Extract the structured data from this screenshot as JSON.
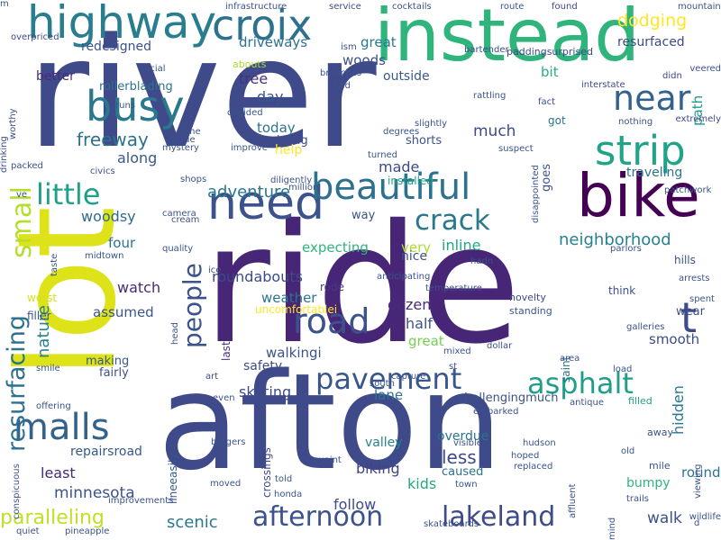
{
  "words": [
    {
      "t": "river",
      "c": "#3e4a89"
    },
    {
      "t": "ride",
      "c": "#482677"
    },
    {
      "t": "afton",
      "c": "#3e4a89"
    },
    {
      "t": "lot",
      "c": "#dde318"
    },
    {
      "t": "instead",
      "c": "#2fb47c"
    },
    {
      "t": "highway",
      "c": "#287d8e"
    },
    {
      "t": "croix",
      "c": "#2c728e"
    },
    {
      "t": "busy",
      "c": "#2a788e"
    },
    {
      "t": "need",
      "c": "#3b528b"
    },
    {
      "t": "bike",
      "c": "#440154"
    },
    {
      "t": "beautiful",
      "c": "#2c728e"
    },
    {
      "t": "strip",
      "c": "#20a386"
    },
    {
      "t": "near",
      "c": "#33638d"
    },
    {
      "t": "little",
      "c": "#1fa187"
    },
    {
      "t": "small",
      "c": "#b5de2b"
    },
    {
      "t": "malls",
      "c": "#33638d"
    },
    {
      "t": "road",
      "c": "#3b528b"
    },
    {
      "t": "people",
      "c": "#3b528b"
    },
    {
      "t": "resurfacing",
      "c": "#2c728e"
    },
    {
      "t": "pavement",
      "c": "#39568c"
    },
    {
      "t": "asphalt",
      "c": "#1f9e89"
    },
    {
      "t": "crack",
      "c": "#2a788e"
    },
    {
      "t": "afternoon",
      "c": "#3b528b"
    },
    {
      "t": "lakeland",
      "c": "#3e4a89"
    },
    {
      "t": "t",
      "c": "#3e4a89"
    },
    {
      "t": "paralleling",
      "c": "#c0df25"
    },
    {
      "t": "dodging",
      "c": "#fde725"
    },
    {
      "t": "freeway",
      "c": "#2c728e"
    },
    {
      "t": "adventure",
      "c": "#2a788e"
    },
    {
      "t": "neighborhood",
      "c": "#26828e"
    },
    {
      "t": "woodsy",
      "c": "#31688e"
    },
    {
      "t": "roundabouts",
      "c": "#3e4a89"
    },
    {
      "t": "expecting",
      "c": "#2fb47c"
    },
    {
      "t": "very",
      "c": "#addc30"
    },
    {
      "t": "inline",
      "c": "#22a884"
    },
    {
      "t": "nature",
      "c": "#26828e"
    },
    {
      "t": "weather",
      "c": "#2c728e"
    },
    {
      "t": "skating",
      "c": "#3e4a89"
    },
    {
      "t": "lane",
      "c": "#2c728e"
    },
    {
      "t": "scenic",
      "c": "#2a788e"
    },
    {
      "t": "minnesota",
      "c": "#3b528b"
    },
    {
      "t": "repairsroad",
      "c": "#38588c"
    },
    {
      "t": "least",
      "c": "#482878"
    },
    {
      "t": "valley",
      "c": "#25848e"
    },
    {
      "t": "biking",
      "c": "#414487"
    },
    {
      "t": "kids",
      "c": "#22a884"
    },
    {
      "t": "follow",
      "c": "#3e4a89"
    },
    {
      "t": "walk",
      "c": "#3b528b"
    },
    {
      "t": "less",
      "c": "#3e4a89"
    },
    {
      "t": "caused",
      "c": "#2c728e"
    },
    {
      "t": "hidden",
      "c": "#2a788e"
    },
    {
      "t": "round",
      "c": "#2c728e"
    },
    {
      "t": "bumpy",
      "c": "#2fb47c"
    },
    {
      "t": "driveways",
      "c": "#2c728e"
    },
    {
      "t": "great",
      "c": "#2a788e"
    },
    {
      "t": "redesigned",
      "c": "#3b528b"
    },
    {
      "t": "better",
      "c": "#472c7a"
    },
    {
      "t": "tree",
      "c": "#46337f"
    },
    {
      "t": "woods",
      "c": "#3b528b"
    },
    {
      "t": "day",
      "c": "#39568c"
    },
    {
      "t": "today",
      "c": "#2c728e"
    },
    {
      "t": "outside",
      "c": "#38588c"
    },
    {
      "t": "resurfaced",
      "c": "#3e4a89"
    },
    {
      "t": "path",
      "c": "#1f9a8a"
    },
    {
      "t": "bit",
      "c": "#29af7f"
    },
    {
      "t": "rollerblading",
      "c": "#2c728e"
    },
    {
      "t": "much",
      "c": "#3e4a89"
    },
    {
      "t": "got",
      "c": "#2c728e"
    },
    {
      "t": "help",
      "c": "#fde725"
    },
    {
      "t": "shorts",
      "c": "#3b528b"
    },
    {
      "t": "along",
      "c": "#38588c"
    },
    {
      "t": "made",
      "c": "#3e4a89"
    },
    {
      "t": "goes",
      "c": "#3b528b"
    },
    {
      "t": "traveling",
      "c": "#2c728e"
    },
    {
      "t": "zigzag",
      "c": "#3e4a89"
    },
    {
      "t": "installed",
      "c": "#20a386"
    },
    {
      "t": "four",
      "c": "#2c728e"
    },
    {
      "t": "way",
      "c": "#3b528b"
    },
    {
      "t": "watch",
      "c": "#472c7a"
    },
    {
      "t": "assumed",
      "c": "#39568c"
    },
    {
      "t": "rode",
      "c": "#453882"
    },
    {
      "t": "last",
      "c": "#46337f"
    },
    {
      "t": "dozen",
      "c": "#472c7a"
    },
    {
      "t": "half",
      "c": "#3b528b"
    },
    {
      "t": "nice",
      "c": "#3b528b"
    },
    {
      "t": "great",
      "c": "#75d054"
    },
    {
      "t": "saint",
      "c": "#2c728e"
    },
    {
      "t": "walkingi",
      "c": "#3b528b"
    },
    {
      "t": "safety",
      "c": "#3e4a89"
    },
    {
      "t": "smooth",
      "c": "#3e4a89"
    },
    {
      "t": "wear",
      "c": "#3b528b"
    },
    {
      "t": "think",
      "c": "#3b528b"
    },
    {
      "t": "crossings",
      "c": "#3e4a89"
    },
    {
      "t": "overdue",
      "c": "#2c728e"
    },
    {
      "t": "challengingmuch",
      "c": "#3b528b"
    },
    {
      "t": "fairly",
      "c": "#3b528b"
    },
    {
      "t": "making",
      "c": "#38588c"
    },
    {
      "t": "filler",
      "c": "#39568c"
    },
    {
      "t": "worst",
      "c": "#d2e21b"
    },
    {
      "t": "lineeasily",
      "c": "#38588c"
    },
    {
      "t": "uncomfortablei",
      "c": "#fde725"
    },
    {
      "t": "hills",
      "c": "#3b528b"
    },
    {
      "t": "filled",
      "c": "#1fa187"
    },
    {
      "t": "standing",
      "c": "#38588c"
    },
    {
      "t": "novelty",
      "c": "#3e4a89"
    },
    {
      "t": "away",
      "c": "#3b528b"
    },
    {
      "t": "mile",
      "c": "#3b528b"
    },
    {
      "t": "infrastructure",
      "c": "#3b528b"
    },
    {
      "t": "service",
      "c": "#3e4a89"
    },
    {
      "t": "cocktails",
      "c": "#3b528b"
    },
    {
      "t": "route",
      "c": "#3b528b"
    },
    {
      "t": "found",
      "c": "#3e4a89"
    },
    {
      "t": "mountain",
      "c": "#3b528b"
    },
    {
      "t": "overpriced",
      "c": "#3e4a89"
    },
    {
      "t": "worthy",
      "c": "#3b528b"
    },
    {
      "t": "abouts",
      "c": "#addc30"
    },
    {
      "t": "branches",
      "c": "#3b528b"
    },
    {
      "t": "paddingsurprised",
      "c": "#3e4a89"
    },
    {
      "t": "social",
      "c": "#3b528b"
    },
    {
      "t": "ism",
      "c": "#3b528b"
    },
    {
      "t": "bartender",
      "c": "#3e4a89"
    },
    {
      "t": "interstate",
      "c": "#3e4a89"
    },
    {
      "t": "didn",
      "c": "#3e4a89"
    },
    {
      "t": "veered",
      "c": "#3b528b"
    },
    {
      "t": "find",
      "c": "#3b528b"
    },
    {
      "t": "rattling",
      "c": "#3b528b"
    },
    {
      "t": "fact",
      "c": "#3b528b"
    },
    {
      "t": "nothing",
      "c": "#3b528b"
    },
    {
      "t": "extremely",
      "c": "#3e4a89"
    },
    {
      "t": "runs",
      "c": "#3b528b"
    },
    {
      "t": "decided",
      "c": "#3b528b"
    },
    {
      "t": "slightly",
      "c": "#3b528b"
    },
    {
      "t": "disappointed",
      "c": "#3b528b"
    },
    {
      "t": "degrees",
      "c": "#3b528b"
    },
    {
      "t": "suspect",
      "c": "#3b528b"
    },
    {
      "t": "time",
      "c": "#3b528b"
    },
    {
      "t": "trade",
      "c": "#3b528b"
    },
    {
      "t": "mystery",
      "c": "#3b528b"
    },
    {
      "t": "improve",
      "c": "#3b528b"
    },
    {
      "t": "turned",
      "c": "#3b528b"
    },
    {
      "t": "drinking",
      "c": "#3e4a89"
    },
    {
      "t": "packed",
      "c": "#3b528b"
    },
    {
      "t": "civics",
      "c": "#3b528b"
    },
    {
      "t": "diligently",
      "c": "#3b528b"
    },
    {
      "t": "million",
      "c": "#3b528b"
    },
    {
      "t": "patchwork",
      "c": "#3b528b"
    },
    {
      "t": "ve",
      "c": "#3b528b"
    },
    {
      "t": "camera",
      "c": "#3b528b"
    },
    {
      "t": "cream",
      "c": "#3b528b"
    },
    {
      "t": "taste",
      "c": "#3b528b"
    },
    {
      "t": "quality",
      "c": "#3b528b"
    },
    {
      "t": "midtown",
      "c": "#3b528b"
    },
    {
      "t": "hadn",
      "c": "#3b528b"
    },
    {
      "t": "parlors",
      "c": "#3b528b"
    },
    {
      "t": "arrests",
      "c": "#3b528b"
    },
    {
      "t": "ice",
      "c": "#3b528b"
    },
    {
      "t": "anticipating",
      "c": "#3b528b"
    },
    {
      "t": "temperature",
      "c": "#3b528b"
    },
    {
      "t": "spent",
      "c": "#3b528b"
    },
    {
      "t": "head",
      "c": "#3b528b"
    },
    {
      "t": "galleries",
      "c": "#3b528b"
    },
    {
      "t": "mixed",
      "c": "#3b528b"
    },
    {
      "t": "dollar",
      "c": "#3b528b"
    },
    {
      "t": "smile",
      "c": "#3b528b"
    },
    {
      "t": "st",
      "c": "#3b528b"
    },
    {
      "t": "area",
      "c": "#3b528b"
    },
    {
      "t": "load",
      "c": "#3b528b"
    },
    {
      "t": "art",
      "c": "#3b528b"
    },
    {
      "t": "capture",
      "c": "#3b528b"
    },
    {
      "t": "south",
      "c": "#3b528b"
    },
    {
      "t": "offering",
      "c": "#3b528b"
    },
    {
      "t": "even",
      "c": "#3b528b"
    },
    {
      "t": "embarked",
      "c": "#3b528b"
    },
    {
      "t": "antique",
      "c": "#3b528b"
    },
    {
      "t": "burgers",
      "c": "#3b528b"
    },
    {
      "t": "visible",
      "c": "#3b528b"
    },
    {
      "t": "hudson",
      "c": "#3b528b"
    },
    {
      "t": "old",
      "c": "#3b528b"
    },
    {
      "t": "viewing",
      "c": "#3b528b"
    },
    {
      "t": "conspicuous",
      "c": "#3b528b"
    },
    {
      "t": "quaint",
      "c": "#3b528b"
    },
    {
      "t": "hoped",
      "c": "#3b528b"
    },
    {
      "t": "replaced",
      "c": "#3b528b"
    },
    {
      "t": "moved",
      "c": "#3b528b"
    },
    {
      "t": "told",
      "c": "#3b528b"
    },
    {
      "t": "honda",
      "c": "#3b528b"
    },
    {
      "t": "town",
      "c": "#3b528b"
    },
    {
      "t": "affluent",
      "c": "#3b528b"
    },
    {
      "t": "improvements",
      "c": "#3b528b"
    },
    {
      "t": "wildlife",
      "c": "#3b528b"
    },
    {
      "t": "trails",
      "c": "#3b528b"
    },
    {
      "t": "d",
      "c": "#3b528b"
    },
    {
      "t": "quiet",
      "c": "#3b528b"
    },
    {
      "t": "pineapple",
      "c": "#3b528b"
    },
    {
      "t": "skateboards",
      "c": "#3b528b"
    },
    {
      "t": "mind",
      "c": "#3b528b"
    },
    {
      "t": "shops",
      "c": "#3b528b"
    },
    {
      "t": "m",
      "c": "#3b528b"
    }
  ]
}
